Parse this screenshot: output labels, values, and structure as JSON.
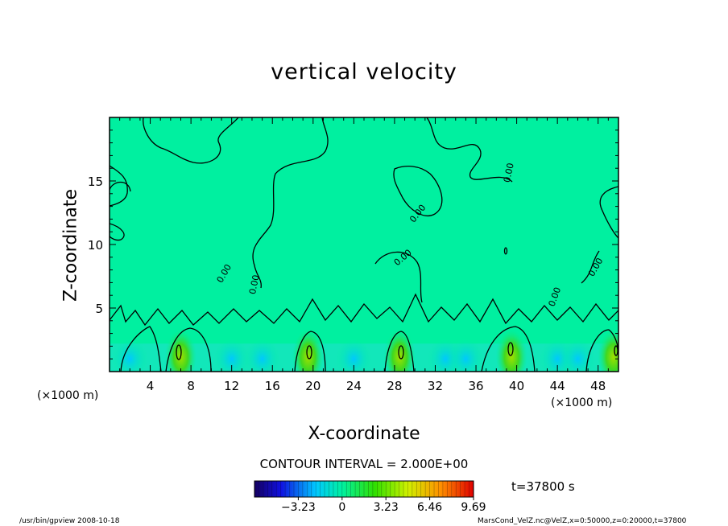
{
  "chart_data": {
    "type": "heatmap",
    "title": "vertical velocity",
    "xlabel": "X-coordinate",
    "ylabel": "Z-coordinate",
    "x_unit": "(×1000 m)",
    "xlim": [
      0,
      50
    ],
    "ylim": [
      0,
      20
    ],
    "x_ticks": [
      4,
      8,
      12,
      16,
      20,
      24,
      28,
      32,
      36,
      40,
      44,
      48
    ],
    "y_ticks": [
      5,
      10,
      15
    ],
    "contour_interval_text": "CONTOUR INTERVAL = 2.000E+00",
    "contour_labels": [
      "0.00",
      "0.00",
      "0.00",
      "0.00",
      "0.00",
      "0.00",
      "0.00"
    ],
    "colorbar": {
      "min": -6.46,
      "max": 9.69,
      "tick_values": [
        -3.23,
        0,
        3.23,
        6.46,
        9.69
      ],
      "tick_labels": [
        "−3.23",
        "0",
        "3.23",
        "6.46",
        "9.69"
      ]
    },
    "time_label": "t=37800 s",
    "updraft_cores_x": [
      7,
      19.5,
      28.5,
      39.5,
      49.5
    ]
  },
  "footer": {
    "left": "/usr/bin/gpview   2008-10-18",
    "right": "MarsCond_VelZ.nc@VelZ,x=0:50000,z=0:20000,t=37800"
  },
  "colors": {
    "background_field": "#00f0a0",
    "contour_line": "#000000",
    "colorbar_low": "#1000a0",
    "colorbar_high": "#ff0000"
  }
}
